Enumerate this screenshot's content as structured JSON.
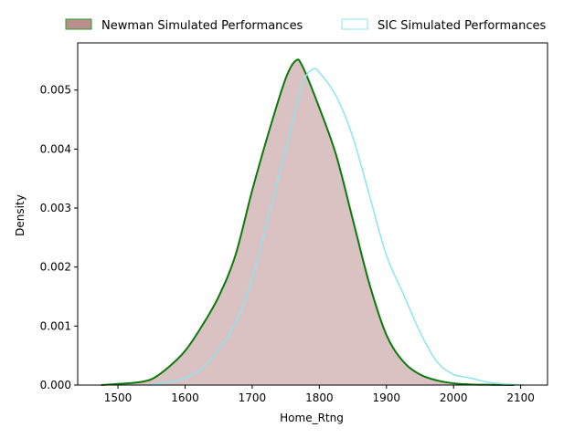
{
  "chart_data": {
    "type": "area",
    "title": "",
    "xlabel": "Home_Rtng",
    "ylabel": "Density",
    "xlim": [
      1440,
      2140
    ],
    "ylim": [
      0,
      0.0058
    ],
    "xticks": [
      1500,
      1600,
      1700,
      1800,
      1900,
      2000,
      2100
    ],
    "yticks": [
      0.0,
      0.001,
      0.002,
      0.003,
      0.004,
      0.005
    ],
    "ytick_labels": [
      "0.000",
      "0.001",
      "0.002",
      "0.003",
      "0.004",
      "0.005"
    ],
    "grid": false,
    "legend_position": "top-center-outside",
    "series": [
      {
        "name": "Newman Simulated Performances",
        "fill_color": "#bc8f8f",
        "fill_opacity": 0.55,
        "line_color": "#0a7a0a",
        "filled": true,
        "x": [
          1475,
          1500,
          1525,
          1550,
          1575,
          1600,
          1625,
          1650,
          1675,
          1700,
          1725,
          1750,
          1765,
          1775,
          1800,
          1825,
          1850,
          1875,
          1900,
          1925,
          1950,
          1975,
          2000,
          2025,
          2050,
          2075,
          2090
        ],
        "y": [
          0.0,
          2e-05,
          4e-05,
          0.0001,
          0.0003,
          0.00058,
          0.001,
          0.0015,
          0.0022,
          0.0033,
          0.0043,
          0.0052,
          0.0055,
          0.0054,
          0.0047,
          0.0039,
          0.0028,
          0.0017,
          0.00085,
          0.0004,
          0.00018,
          8e-05,
          3e-05,
          1e-05,
          5e-06,
          2e-06,
          0.0
        ]
      },
      {
        "name": "SIC Simulated Performances",
        "fill_color": "#ffffff",
        "line_color": "#8ee5ee",
        "filled": false,
        "x": [
          1545,
          1575,
          1600,
          1625,
          1650,
          1675,
          1700,
          1725,
          1750,
          1775,
          1790,
          1800,
          1825,
          1850,
          1875,
          1900,
          1925,
          1950,
          1975,
          2000,
          2025,
          2050,
          2075,
          2105
        ],
        "y": [
          0.0,
          5e-05,
          0.00012,
          0.00028,
          0.0006,
          0.00105,
          0.0018,
          0.0029,
          0.004,
          0.0051,
          0.00535,
          0.0053,
          0.0049,
          0.0042,
          0.0032,
          0.0022,
          0.00155,
          0.0009,
          0.0004,
          0.00018,
          0.00012,
          5e-05,
          2e-05,
          0.0
        ]
      }
    ]
  }
}
